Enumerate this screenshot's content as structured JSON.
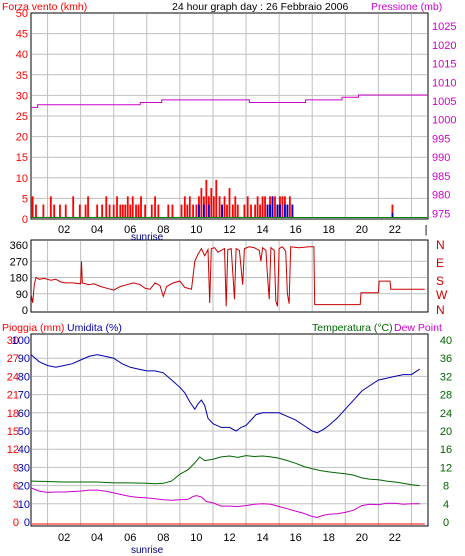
{
  "colors": {
    "frame": "#000000",
    "grid": "#c0c0c0",
    "wind_axis": "#ff0000",
    "wind_bars": "#ff0000",
    "gust_bars": "#0000cc",
    "pressure": "#cc00cc",
    "direction": "#cc0000",
    "humidity": "#0000aa",
    "temperature": "#006600",
    "dewpoint": "#cc00cc",
    "rain": "#ff0000",
    "title_text": "#000000"
  },
  "chart_data": [
    {
      "id": "wind_pressure",
      "type": "bar",
      "title": "24 hour graph day : 26 Febbraio 2006",
      "left_label": "Forza vento (kmh)",
      "right_label": "Pressione (mb)",
      "x_ticks": [
        "02",
        "04",
        "06",
        "08",
        "10",
        "12",
        "14",
        "16",
        "18",
        "20",
        "22"
      ],
      "x_range": [
        0,
        24
      ],
      "sunrise_label": "sunrise",
      "sunrise_hour": 6.3,
      "y_left_ticks": [
        0,
        5,
        10,
        15,
        20,
        25,
        30,
        35,
        40,
        45,
        50
      ],
      "y_left_range": [
        0,
        50
      ],
      "y_right_ticks": [
        975,
        980,
        985,
        990,
        995,
        1000,
        1005,
        1010,
        1015,
        1020,
        1025
      ],
      "y_right_range": [
        973.5,
        1028.5
      ],
      "wind_bars": [
        [
          0.1,
          5.5
        ],
        [
          0.3,
          3.5
        ],
        [
          0.75,
          3.5
        ],
        [
          1.2,
          5.5
        ],
        [
          1.4,
          3.5
        ],
        [
          1.75,
          3.5
        ],
        [
          2.1,
          3.5
        ],
        [
          2.55,
          5.5
        ],
        [
          2.95,
          3.5
        ],
        [
          3.3,
          3.5
        ],
        [
          3.45,
          5.5
        ],
        [
          4.0,
          3.5
        ],
        [
          4.3,
          3.5
        ],
        [
          4.55,
          5.5
        ],
        [
          4.75,
          3.5
        ],
        [
          5.0,
          3.5
        ],
        [
          5.2,
          5.5
        ],
        [
          5.4,
          3.5
        ],
        [
          5.55,
          3.5
        ],
        [
          5.7,
          3.5
        ],
        [
          5.85,
          5.5
        ],
        [
          6.0,
          3.5
        ],
        [
          6.15,
          5.5
        ],
        [
          6.35,
          3.5
        ],
        [
          6.5,
          3.5
        ],
        [
          6.65,
          5.5
        ],
        [
          6.9,
          3.5
        ],
        [
          7.3,
          3.5
        ],
        [
          7.5,
          5.5
        ],
        [
          7.7,
          3.5
        ],
        [
          8.3,
          3.5
        ],
        [
          8.55,
          3.5
        ],
        [
          9.1,
          3.5
        ],
        [
          9.3,
          5.5
        ],
        [
          9.45,
          3.5
        ],
        [
          9.6,
          5.5
        ],
        [
          9.8,
          3.5
        ],
        [
          10.0,
          3.5
        ],
        [
          10.15,
          5.5
        ],
        [
          10.3,
          7.5
        ],
        [
          10.45,
          5.5
        ],
        [
          10.6,
          9.5
        ],
        [
          10.75,
          5.5
        ],
        [
          10.9,
          7.5
        ],
        [
          11.05,
          5.5
        ],
        [
          11.2,
          9.5
        ],
        [
          11.4,
          5.5
        ],
        [
          11.55,
          3.5
        ],
        [
          11.7,
          5.5
        ],
        [
          11.85,
          3.5
        ],
        [
          12.0,
          7.5
        ],
        [
          12.2,
          3.5
        ],
        [
          12.35,
          5.5
        ],
        [
          12.5,
          3.5
        ],
        [
          12.9,
          3.5
        ],
        [
          13.1,
          5.5
        ],
        [
          13.3,
          3.5
        ],
        [
          13.55,
          3.5
        ],
        [
          13.7,
          5.5
        ],
        [
          13.85,
          3.5
        ],
        [
          14.0,
          5.5
        ],
        [
          14.15,
          5.5
        ],
        [
          14.3,
          3.5
        ],
        [
          14.45,
          5.5
        ],
        [
          14.6,
          5.5
        ],
        [
          14.75,
          5.5
        ],
        [
          14.9,
          3.5
        ],
        [
          15.05,
          5.5
        ],
        [
          15.2,
          5.5
        ],
        [
          15.35,
          5.5
        ],
        [
          15.5,
          3.5
        ],
        [
          15.65,
          5.5
        ],
        [
          15.8,
          3.5
        ],
        [
          21.85,
          3.5
        ]
      ],
      "gust_bars": [
        [
          10.15,
          3.5
        ],
        [
          10.45,
          3.5
        ],
        [
          10.75,
          3.5
        ],
        [
          11.55,
          3.5
        ],
        [
          14.3,
          3.5
        ],
        [
          14.45,
          3.5
        ],
        [
          14.6,
          5.5
        ],
        [
          14.9,
          3.5
        ],
        [
          15.05,
          3.5
        ],
        [
          15.35,
          3.5
        ],
        [
          15.5,
          3.5
        ],
        [
          15.8,
          3.5
        ],
        [
          21.85,
          1.5
        ]
      ],
      "pressure": [
        [
          0,
          1003.3
        ],
        [
          0.4,
          1003.3
        ],
        [
          0.4,
          1004.0
        ],
        [
          6.6,
          1004.0
        ],
        [
          6.6,
          1004.6
        ],
        [
          7.9,
          1004.6
        ],
        [
          7.9,
          1005.3
        ],
        [
          13.2,
          1005.3
        ],
        [
          13.2,
          1004.6
        ],
        [
          16.6,
          1004.6
        ],
        [
          16.6,
          1005.3
        ],
        [
          18.8,
          1005.3
        ],
        [
          18.8,
          1006.0
        ],
        [
          19.8,
          1006.0
        ],
        [
          19.8,
          1006.6
        ],
        [
          24,
          1006.6
        ]
      ]
    },
    {
      "id": "direction",
      "type": "line",
      "y_ticks": [
        0,
        90,
        180,
        270,
        360
      ],
      "y_range": [
        0,
        360
      ],
      "right_labels": [
        "N",
        "W",
        "S",
        "E",
        "N"
      ],
      "points": [
        [
          0.0,
          90
        ],
        [
          0.1,
          40
        ],
        [
          0.2,
          140
        ],
        [
          0.3,
          180
        ],
        [
          0.5,
          170
        ],
        [
          0.8,
          175
        ],
        [
          1.2,
          165
        ],
        [
          1.5,
          170
        ],
        [
          1.8,
          155
        ],
        [
          2.1,
          150
        ],
        [
          2.5,
          150
        ],
        [
          3.0,
          145
        ],
        [
          3.05,
          270
        ],
        [
          3.1,
          150
        ],
        [
          3.5,
          140
        ],
        [
          3.8,
          145
        ],
        [
          4.2,
          130
        ],
        [
          4.6,
          120
        ],
        [
          5.0,
          110
        ],
        [
          5.4,
          130
        ],
        [
          5.8,
          140
        ],
        [
          6.2,
          150
        ],
        [
          6.6,
          140
        ],
        [
          6.9,
          120
        ],
        [
          7.2,
          115
        ],
        [
          7.5,
          150
        ],
        [
          7.8,
          135
        ],
        [
          8.0,
          75
        ],
        [
          8.2,
          130
        ],
        [
          8.6,
          150
        ],
        [
          9.0,
          160
        ],
        [
          9.3,
          125
        ],
        [
          9.7,
          115
        ],
        [
          9.9,
          270
        ],
        [
          10.1,
          310
        ],
        [
          10.3,
          340
        ],
        [
          10.5,
          300
        ],
        [
          10.7,
          335
        ],
        [
          10.8,
          40
        ],
        [
          10.9,
          340
        ],
        [
          11.1,
          345
        ],
        [
          11.3,
          320
        ],
        [
          11.5,
          330
        ],
        [
          11.7,
          340
        ],
        [
          11.8,
          20
        ],
        [
          11.9,
          335
        ],
        [
          12.1,
          340
        ],
        [
          12.3,
          60
        ],
        [
          12.4,
          340
        ],
        [
          12.6,
          330
        ],
        [
          12.8,
          140
        ],
        [
          12.9,
          340
        ],
        [
          13.2,
          350
        ],
        [
          13.5,
          345
        ],
        [
          13.8,
          330
        ],
        [
          13.9,
          270
        ],
        [
          14.0,
          345
        ],
        [
          14.2,
          330
        ],
        [
          14.3,
          190
        ],
        [
          14.4,
          60
        ],
        [
          14.5,
          345
        ],
        [
          14.7,
          330
        ],
        [
          14.8,
          50
        ],
        [
          14.9,
          20
        ],
        [
          15.0,
          340
        ],
        [
          15.2,
          350
        ],
        [
          15.4,
          325
        ],
        [
          15.5,
          90
        ],
        [
          15.6,
          35
        ],
        [
          15.7,
          350
        ],
        [
          16.2,
          345
        ],
        [
          16.8,
          350
        ],
        [
          17.1,
          350
        ],
        [
          17.15,
          30
        ],
        [
          19.9,
          30
        ],
        [
          19.95,
          95
        ],
        [
          20.6,
          95
        ],
        [
          21.0,
          95
        ],
        [
          21.05,
          160
        ],
        [
          21.7,
          160
        ],
        [
          21.75,
          115
        ],
        [
          23.8,
          115
        ]
      ]
    },
    {
      "id": "humidity_temp",
      "type": "line",
      "label_rain": "Pioggia (mm)",
      "label_humidity": "Umidita (%)",
      "label_temperature": "Temperatura (°C)",
      "label_dewpoint": "Dew Point",
      "x_ticks": [
        "02",
        "04",
        "06",
        "08",
        "10",
        "12",
        "14",
        "16",
        "18",
        "20",
        "22"
      ],
      "sunrise_label": "sunrise",
      "sunrise_hour": 6.3,
      "y_humidity_ticks": [
        0,
        10,
        20,
        30,
        40,
        50,
        60,
        70,
        80,
        90,
        100
      ],
      "y_rain_ticks": [
        0,
        3,
        6,
        9,
        12,
        15,
        18,
        21,
        24,
        27,
        30
      ],
      "y_temp_ticks": [
        0,
        4,
        8,
        12,
        16,
        20,
        24,
        28,
        32,
        36,
        40
      ],
      "humidity": [
        [
          0.0,
          92
        ],
        [
          0.5,
          88
        ],
        [
          1.0,
          86
        ],
        [
          1.5,
          85
        ],
        [
          2.0,
          86
        ],
        [
          2.5,
          87
        ],
        [
          3.0,
          89
        ],
        [
          3.5,
          91
        ],
        [
          4.0,
          92
        ],
        [
          4.5,
          91
        ],
        [
          5.0,
          90
        ],
        [
          5.5,
          87
        ],
        [
          6.0,
          85
        ],
        [
          6.5,
          84
        ],
        [
          7.0,
          83
        ],
        [
          7.5,
          83
        ],
        [
          8.0,
          82
        ],
        [
          8.5,
          78
        ],
        [
          9.0,
          74
        ],
        [
          9.3,
          71
        ],
        [
          9.6,
          66
        ],
        [
          9.9,
          62
        ],
        [
          10.1,
          65
        ],
        [
          10.3,
          67
        ],
        [
          10.5,
          64
        ],
        [
          10.7,
          57
        ],
        [
          11.0,
          54
        ],
        [
          11.5,
          52
        ],
        [
          12.0,
          52
        ],
        [
          12.4,
          50
        ],
        [
          12.7,
          52
        ],
        [
          13.0,
          53
        ],
        [
          13.3,
          56
        ],
        [
          13.6,
          59
        ],
        [
          14.0,
          60
        ],
        [
          14.5,
          60
        ],
        [
          15.0,
          60
        ],
        [
          15.5,
          58
        ],
        [
          16.0,
          56
        ],
        [
          16.5,
          53
        ],
        [
          17.0,
          50
        ],
        [
          17.3,
          49
        ],
        [
          17.7,
          51
        ],
        [
          18.0,
          53
        ],
        [
          18.5,
          57
        ],
        [
          19.0,
          62
        ],
        [
          19.5,
          67
        ],
        [
          20.0,
          72
        ],
        [
          20.5,
          75
        ],
        [
          21.0,
          78
        ],
        [
          21.5,
          79
        ],
        [
          22.0,
          80
        ],
        [
          22.5,
          81
        ],
        [
          23.0,
          81
        ],
        [
          23.5,
          84
        ]
      ],
      "temperature": [
        [
          0.0,
          9.0
        ],
        [
          1.0,
          8.9
        ],
        [
          2.0,
          8.8
        ],
        [
          3.0,
          8.8
        ],
        [
          4.0,
          8.8
        ],
        [
          5.0,
          8.6
        ],
        [
          6.0,
          8.6
        ],
        [
          7.0,
          8.5
        ],
        [
          7.5,
          8.4
        ],
        [
          8.0,
          8.5
        ],
        [
          8.5,
          9.0
        ],
        [
          9.0,
          10.5
        ],
        [
          9.5,
          11.5
        ],
        [
          9.9,
          13.0
        ],
        [
          10.2,
          14.3
        ],
        [
          10.5,
          13.5
        ],
        [
          11.0,
          13.8
        ],
        [
          11.5,
          14.3
        ],
        [
          12.0,
          14.5
        ],
        [
          12.5,
          14.2
        ],
        [
          13.0,
          14.6
        ],
        [
          13.5,
          14.4
        ],
        [
          14.0,
          14.5
        ],
        [
          14.5,
          14.3
        ],
        [
          15.0,
          14.0
        ],
        [
          15.5,
          13.5
        ],
        [
          16.0,
          12.9
        ],
        [
          16.5,
          12.2
        ],
        [
          17.0,
          11.7
        ],
        [
          17.5,
          11.3
        ],
        [
          18.0,
          11.0
        ],
        [
          18.5,
          10.8
        ],
        [
          19.0,
          10.6
        ],
        [
          19.5,
          10.3
        ],
        [
          20.0,
          9.7
        ],
        [
          20.5,
          9.4
        ],
        [
          21.0,
          9.3
        ],
        [
          21.5,
          9.0
        ],
        [
          22.0,
          8.8
        ],
        [
          22.5,
          8.5
        ],
        [
          23.0,
          8.2
        ],
        [
          23.5,
          8.0
        ]
      ],
      "dewpoint": [
        [
          0.0,
          7.5
        ],
        [
          0.5,
          6.8
        ],
        [
          1.0,
          6.5
        ],
        [
          1.5,
          6.6
        ],
        [
          2.0,
          6.6
        ],
        [
          2.5,
          6.7
        ],
        [
          3.0,
          6.8
        ],
        [
          3.5,
          7.0
        ],
        [
          4.0,
          7.0
        ],
        [
          4.5,
          6.8
        ],
        [
          5.0,
          6.4
        ],
        [
          5.5,
          6.0
        ],
        [
          6.0,
          5.6
        ],
        [
          6.5,
          5.4
        ],
        [
          7.0,
          5.3
        ],
        [
          7.5,
          5.1
        ],
        [
          8.0,
          4.9
        ],
        [
          8.5,
          4.8
        ],
        [
          9.0,
          4.9
        ],
        [
          9.5,
          5.0
        ],
        [
          9.8,
          5.6
        ],
        [
          10.0,
          5.8
        ],
        [
          10.3,
          5.5
        ],
        [
          10.6,
          4.5
        ],
        [
          11.0,
          4.2
        ],
        [
          11.5,
          3.5
        ],
        [
          12.0,
          3.5
        ],
        [
          12.5,
          3.4
        ],
        [
          13.0,
          3.6
        ],
        [
          13.5,
          3.9
        ],
        [
          14.0,
          4.0
        ],
        [
          14.5,
          3.9
        ],
        [
          15.0,
          3.4
        ],
        [
          15.5,
          2.9
        ],
        [
          16.0,
          2.4
        ],
        [
          16.5,
          1.9
        ],
        [
          17.0,
          1.2
        ],
        [
          17.3,
          1.0
        ],
        [
          17.6,
          1.4
        ],
        [
          18.0,
          1.7
        ],
        [
          18.5,
          1.8
        ],
        [
          19.0,
          2.1
        ],
        [
          19.5,
          2.6
        ],
        [
          20.0,
          3.6
        ],
        [
          20.5,
          3.9
        ],
        [
          21.0,
          3.8
        ],
        [
          21.5,
          4.1
        ],
        [
          22.0,
          4.1
        ],
        [
          22.5,
          3.9
        ],
        [
          23.0,
          4.0
        ],
        [
          23.5,
          4.0
        ]
      ],
      "rain": [
        [
          0,
          0
        ],
        [
          23.8,
          0
        ]
      ]
    }
  ]
}
